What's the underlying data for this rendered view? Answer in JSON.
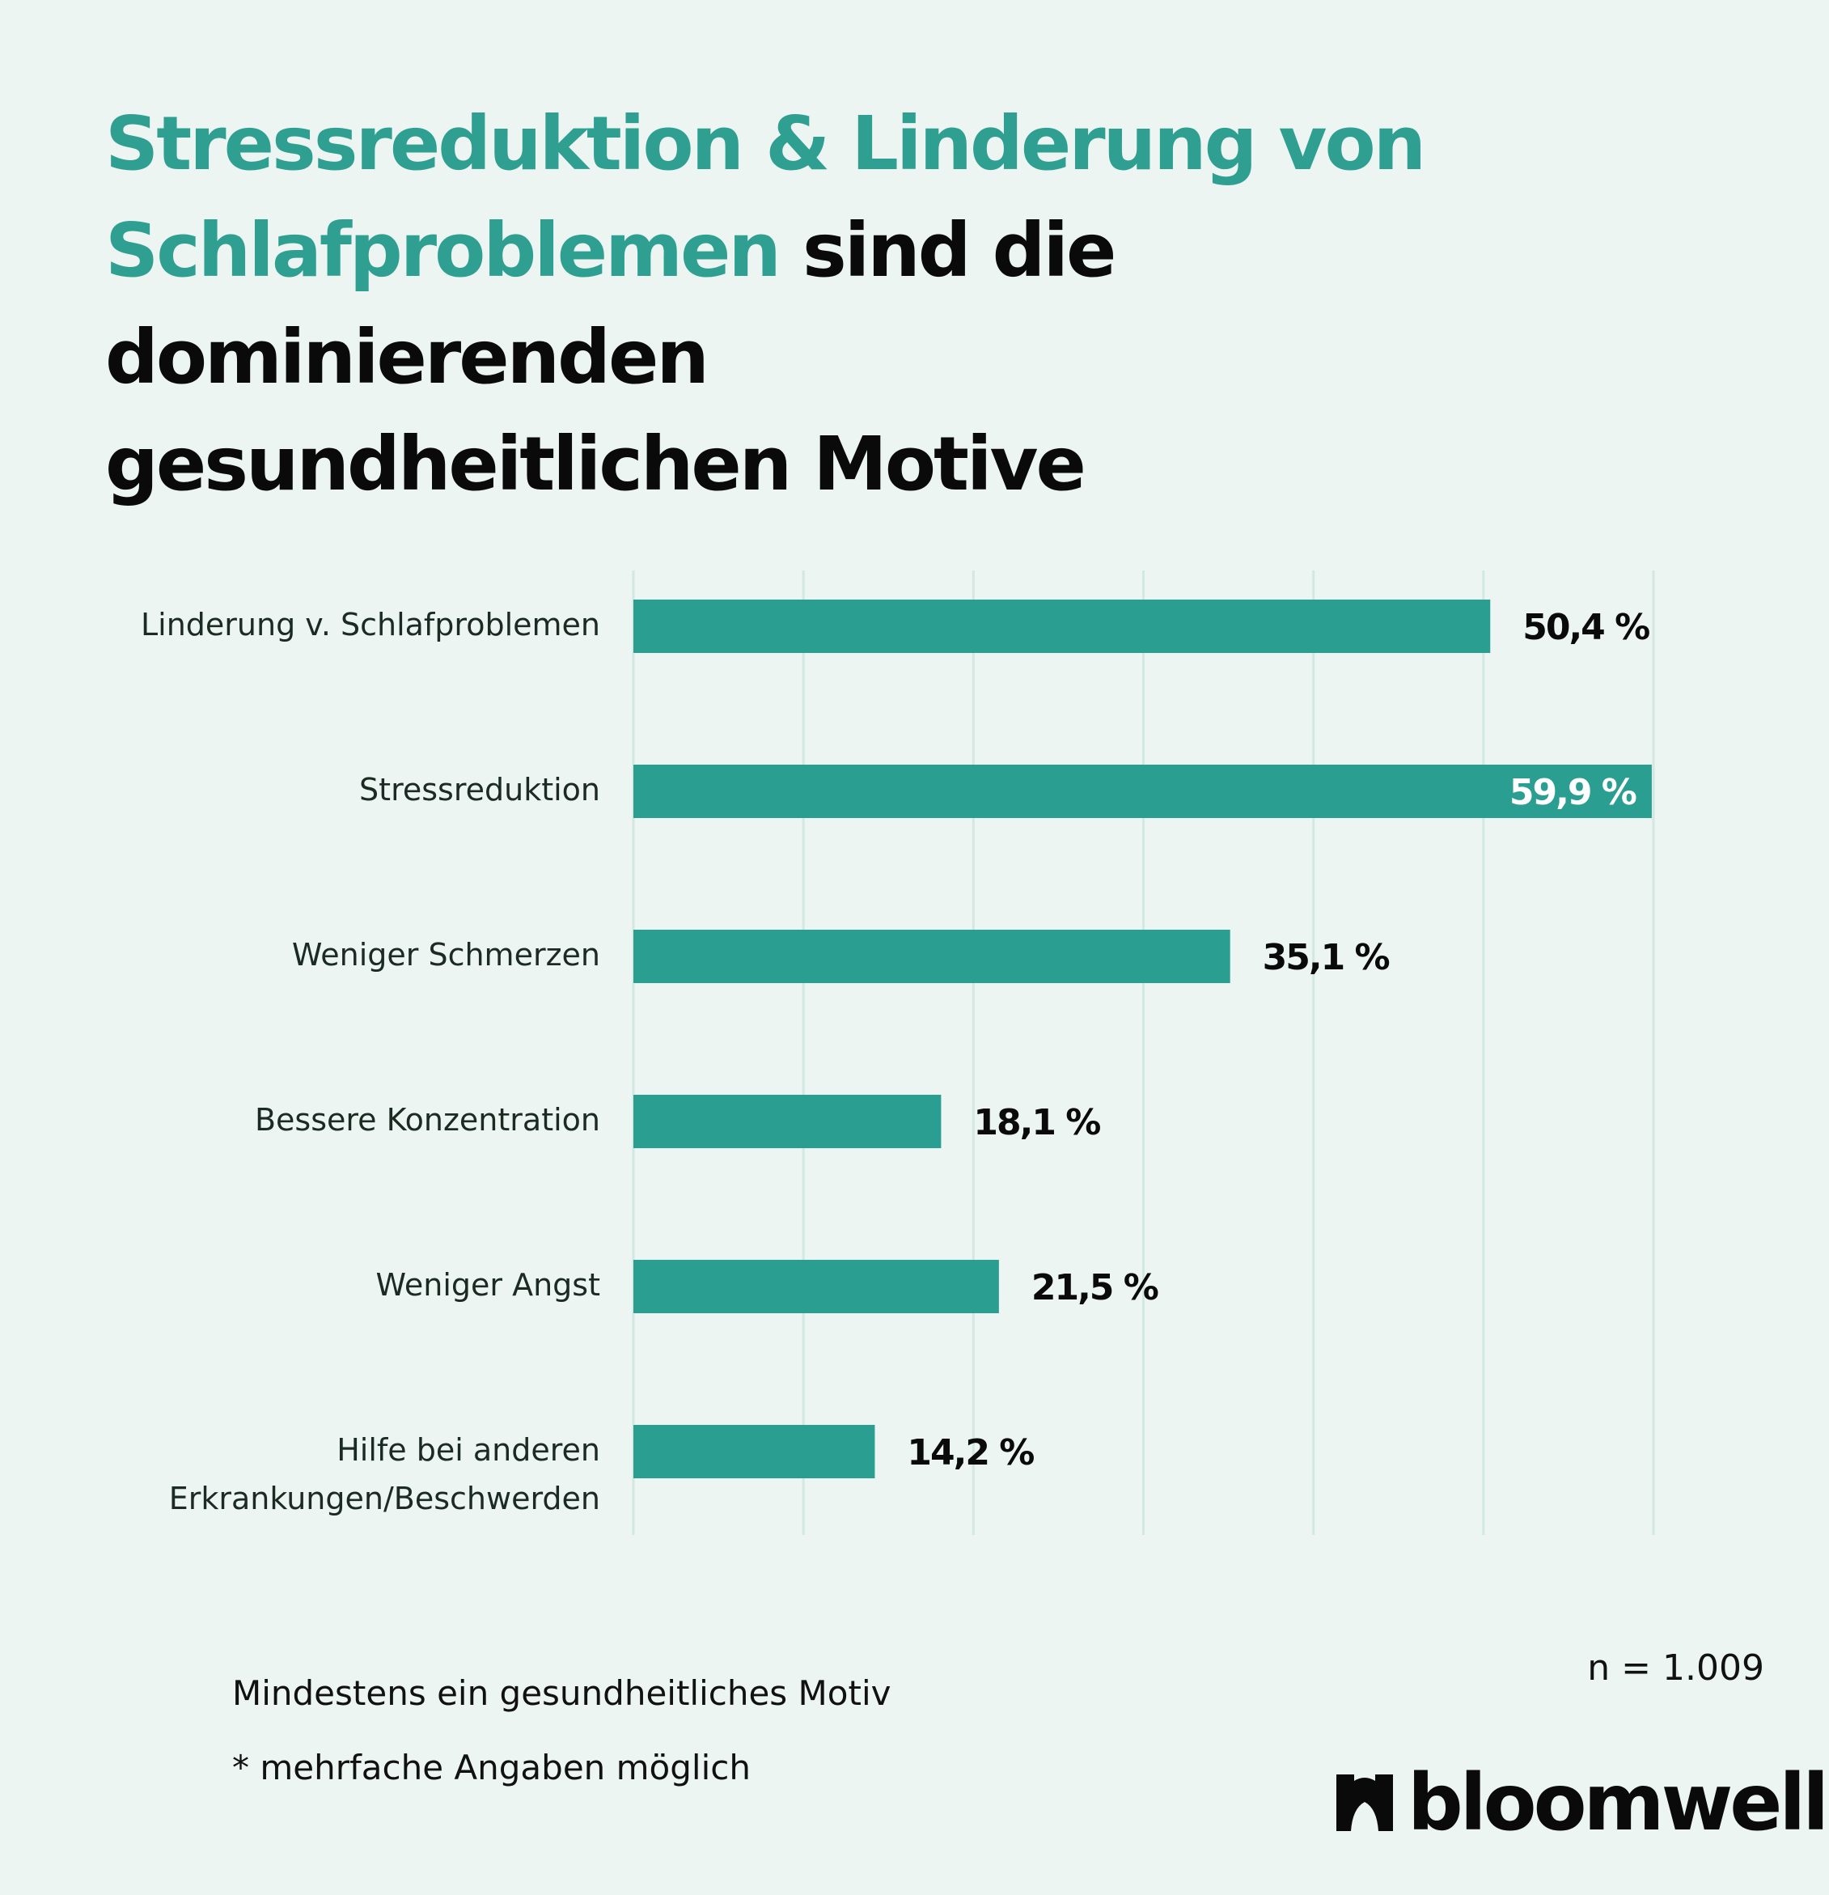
{
  "title": {
    "accent_line1": "Stressreduktion & Linderung von",
    "accent_line2": "Schlafproblemen",
    "rest_line2": " sind die dominierenden",
    "line3": "gesundheitlichen Motive"
  },
  "colors": {
    "accent": "#2e9f91",
    "bar": "#2b9e92",
    "background": "#ecf5f2",
    "gridline": "#d3e8e0",
    "text": "#0a0a0a"
  },
  "chart_data": {
    "type": "bar",
    "orientation": "horizontal",
    "categories": [
      [
        "Linderung v. Schlafproblemen"
      ],
      [
        "Stressreduktion"
      ],
      [
        "Weniger Schmerzen"
      ],
      [
        "Bessere Konzentration"
      ],
      [
        "Weniger Angst"
      ],
      [
        "Hilfe bei anderen",
        "Erkrankungen/Beschwerden"
      ]
    ],
    "values": [
      50.4,
      59.9,
      35.1,
      18.1,
      21.5,
      14.2
    ],
    "value_labels": [
      "50,4 %",
      "59,9 %",
      "35,1 %",
      "18,1 %",
      "21,5 %",
      "14,2 %"
    ],
    "xlim": [
      0,
      60
    ],
    "grid": true,
    "title": "",
    "xlabel": "",
    "ylabel": ""
  },
  "footnotes": {
    "line1": "Mindestens ein gesundheitliches Motiv",
    "line2": "* mehrfache Angaben möglich",
    "sample": "n = 1.009"
  },
  "logo": {
    "text": "bloomwell",
    "icon": "bloomwell-leaf-icon"
  }
}
